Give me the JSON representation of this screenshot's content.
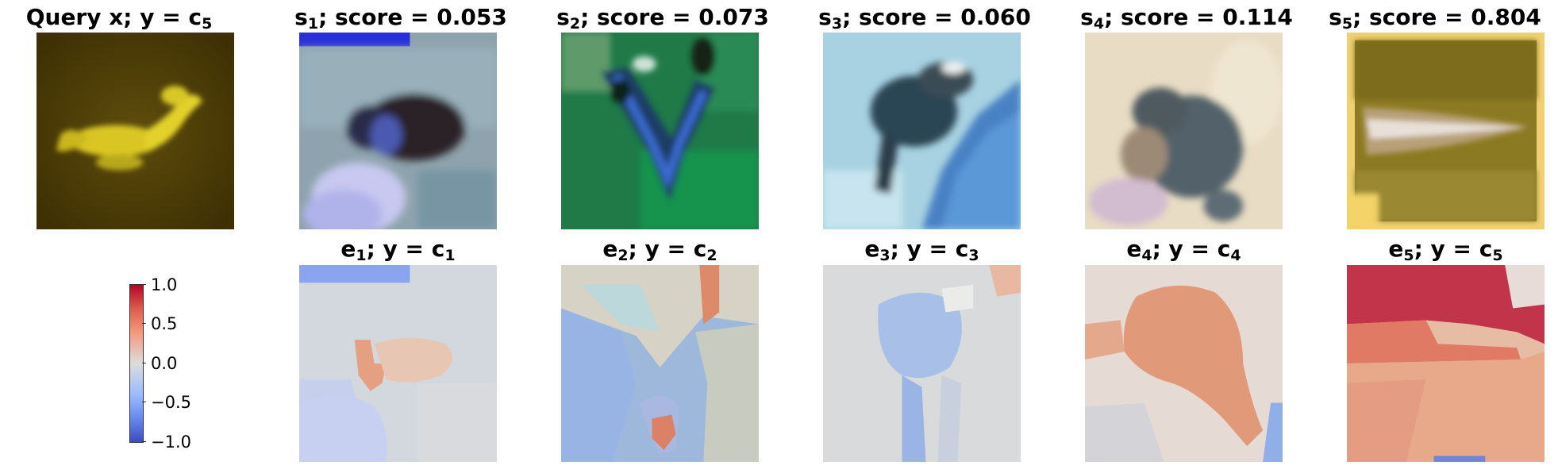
{
  "query": {
    "label": "Query x; y = ",
    "class_base": "c",
    "class_sub": "5"
  },
  "samples": [
    {
      "base": "s",
      "sub": "1",
      "score_text": "; score = 0.053"
    },
    {
      "base": "s",
      "sub": "2",
      "score_text": "; score = 0.073"
    },
    {
      "base": "s",
      "sub": "3",
      "score_text": "; score = 0.060"
    },
    {
      "base": "s",
      "sub": "4",
      "score_text": "; score = 0.114"
    },
    {
      "base": "s",
      "sub": "5",
      "score_text": "; score = 0.804"
    }
  ],
  "explanations": [
    {
      "base": "e",
      "sub": "1",
      "mid": "; y = ",
      "cbase": "c",
      "csub": "1"
    },
    {
      "base": "e",
      "sub": "2",
      "mid": "; y = ",
      "cbase": "c",
      "csub": "2"
    },
    {
      "base": "e",
      "sub": "3",
      "mid": "; y = ",
      "cbase": "c",
      "csub": "3"
    },
    {
      "base": "e",
      "sub": "4",
      "mid": "; y = ",
      "cbase": "c",
      "csub": "4"
    },
    {
      "base": "e",
      "sub": "5",
      "mid": "; y = ",
      "cbase": "c",
      "csub": "5"
    }
  ],
  "colorbar": {
    "colormap": "coolwarm",
    "range": [
      -1.0,
      1.0
    ],
    "ticks": [
      "1.0",
      "0.5",
      "0.0",
      "−0.5",
      "−1.0"
    ]
  }
}
